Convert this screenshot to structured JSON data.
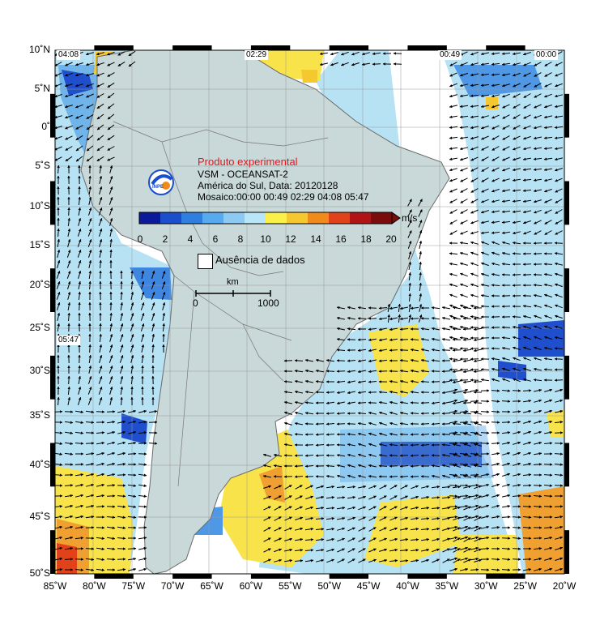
{
  "legend": {
    "title": "Produto experimental",
    "line1": "VSM - OCEANSAT-2",
    "line2": "América do Sul, Data: 20120128",
    "line3": "Mosaico:00:00 00:49 02:29 04:08 05:47",
    "unit": "m/s",
    "colorbar_ticks": [
      "0",
      "2",
      "4",
      "6",
      "8",
      "10",
      "12",
      "14",
      "16",
      "18",
      "20"
    ],
    "colors": [
      "#0a1a9a",
      "#1a4ecc",
      "#2e7fe0",
      "#58aaf0",
      "#8ccaf4",
      "#b8e6f8",
      "#fbf04a",
      "#f6c830",
      "#f08a1a",
      "#e2421a",
      "#b01414",
      "#7a0c0c"
    ],
    "nodata_label": "Ausência de dados",
    "scale_unit": "km",
    "scale_start": "0",
    "scale_end": "1000"
  },
  "pass_times": {
    "t1": "04:08",
    "t2": "02:29",
    "t3": "00:49",
    "t4": "00:00",
    "t5": "05:47"
  },
  "axes": {
    "lat_labels": [
      "10˚N",
      "5˚N",
      "0˚",
      "5˚S",
      "10˚S",
      "15˚S",
      "20˚S",
      "25˚S",
      "30˚S",
      "35˚S",
      "40˚S",
      "45˚S",
      "50˚S"
    ],
    "lon_labels": [
      "85˚W",
      "80˚W",
      "75˚W",
      "70˚W",
      "65˚W",
      "60˚W",
      "55˚W",
      "50˚W",
      "45˚W",
      "40˚W",
      "35˚W",
      "30˚W",
      "25˚W",
      "20˚W"
    ]
  }
}
